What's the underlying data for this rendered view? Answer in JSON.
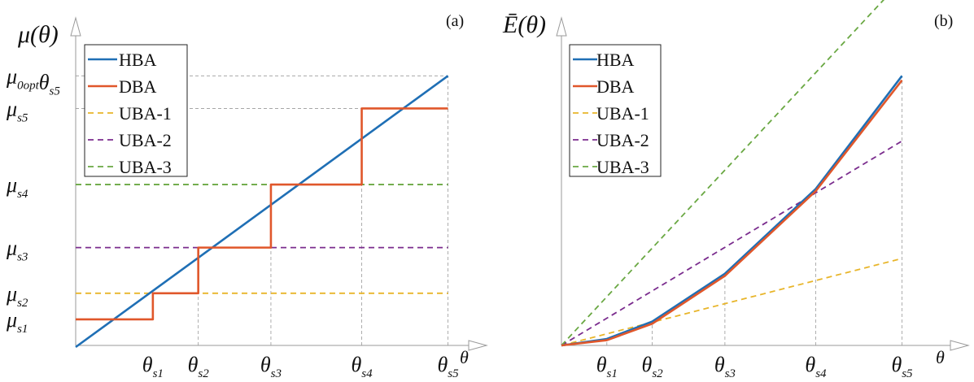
{
  "colors": {
    "HBA": "#1f6fb5",
    "DBA": "#e0572b",
    "UBA-1": "#e8b52a",
    "UBA-2": "#7b2d8e",
    "UBA-3": "#6aa843",
    "guide": "#9a9a9a",
    "axis": "#9a9a9a"
  },
  "chart_data": [
    {
      "type": "line",
      "panel_label": "(a)",
      "ylabel": "μ(θ)",
      "xlabel": "θ",
      "grid": false,
      "legend": "top-left",
      "x_ticks": [
        {
          "label": "θs1",
          "x": 1
        },
        {
          "label": "θs2",
          "x": 2
        },
        {
          "label": "θs3",
          "x": 3.6
        },
        {
          "label": "θs4",
          "x": 5.6
        },
        {
          "label": "θs5",
          "x": 7.5
        }
      ],
      "y_ticks": [
        {
          "label": "μs1",
          "y": 0.6
        },
        {
          "label": "μs2",
          "y": 1.2
        },
        {
          "label": "μs3",
          "y": 2.25
        },
        {
          "label": "μs4",
          "y": 3.7
        },
        {
          "label": "μs5",
          "y": 5.45
        },
        {
          "label": "μ0opt θs5",
          "y": 6.2
        }
      ],
      "xlim": [
        -0.7,
        8.5
      ],
      "ylim": [
        0,
        7.5
      ],
      "series": [
        {
          "name": "HBA",
          "x": [
            -0.7,
            7.5
          ],
          "y": [
            -0.25,
            6.2
          ]
        },
        {
          "name": "DBA",
          "x": [
            -0.7,
            1,
            1,
            2,
            2,
            3.6,
            3.6,
            5.6,
            5.6,
            7.5
          ],
          "y": [
            0.6,
            0.6,
            1.2,
            1.2,
            2.25,
            2.25,
            3.7,
            3.7,
            5.45,
            5.45
          ]
        },
        {
          "name": "UBA-1",
          "x": [
            -0.7,
            7.5
          ],
          "y": [
            1.2,
            1.2
          ]
        },
        {
          "name": "UBA-2",
          "x": [
            -0.7,
            7.5
          ],
          "y": [
            2.25,
            2.25
          ]
        },
        {
          "name": "UBA-3",
          "x": [
            -0.7,
            7.5
          ],
          "y": [
            3.7,
            3.7
          ]
        }
      ]
    },
    {
      "type": "line",
      "panel_label": "(b)",
      "ylabel": "Ē(θ)",
      "xlabel": "θ",
      "grid": false,
      "legend": "top-left",
      "x_ticks": [
        {
          "label": "θs1",
          "x": 1
        },
        {
          "label": "θs2",
          "x": 2
        },
        {
          "label": "θs3",
          "x": 3.6
        },
        {
          "label": "θs4",
          "x": 5.6
        },
        {
          "label": "θs5",
          "x": 7.5
        }
      ],
      "y_ticks": [],
      "xlim": [
        0,
        8.5
      ],
      "ylim": [
        0,
        7.5
      ],
      "series": [
        {
          "name": "HBA",
          "x": [
            0,
            1,
            2,
            3.6,
            5.6,
            7.5
          ],
          "y": [
            0,
            0.15,
            0.55,
            1.65,
            3.6,
            6.2
          ]
        },
        {
          "name": "DBA",
          "x": [
            0,
            1,
            2,
            3.6,
            5.6,
            7.5
          ],
          "y": [
            0,
            0.12,
            0.5,
            1.6,
            3.55,
            6.1
          ]
        },
        {
          "name": "UBA-1",
          "x": [
            0,
            7.5
          ],
          "y": [
            0,
            2.0
          ]
        },
        {
          "name": "UBA-2",
          "x": [
            0,
            7.5
          ],
          "y": [
            0,
            4.7
          ]
        },
        {
          "name": "UBA-3",
          "x": [
            0,
            7.5
          ],
          "y": [
            0,
            8.4
          ]
        }
      ]
    }
  ]
}
